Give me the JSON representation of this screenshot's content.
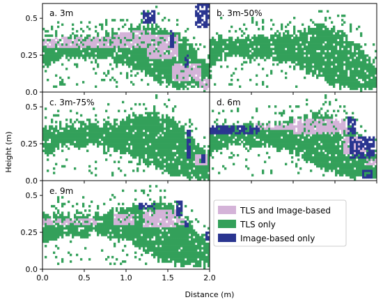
{
  "chart_data": {
    "type": "heatmap",
    "xlabel": "Distance (m)",
    "ylabel": "Height (m)",
    "xlim": [
      0,
      2.0
    ],
    "ylim": [
      0,
      0.6
    ],
    "xticks": [
      0.0,
      0.5,
      1.0,
      1.5,
      2.0
    ],
    "xtick_labels": [
      "0.0",
      "0.5",
      "1.0",
      "1.5",
      "2.0"
    ],
    "yticks": [
      0.0,
      0.25,
      0.5
    ],
    "ytick_labels": [
      "0.0",
      "0.25",
      "0.5"
    ],
    "grid": false,
    "legend": {
      "placement": "lower-right",
      "entries": [
        {
          "label": "TLS and Image-based",
          "color": "#d4b3d8"
        },
        {
          "label": "TLS only",
          "color": "#33a05a"
        },
        {
          "label": "Image-based only",
          "color": "#2a3590"
        }
      ]
    },
    "panels": [
      {
        "label": "a. 3m",
        "image_based": [
          [
            1.2,
            0.47,
            0.16,
            0.09
          ],
          [
            1.82,
            0.44,
            0.17,
            0.16
          ],
          [
            1.52,
            0.3,
            0.06,
            0.12
          ],
          [
            1.7,
            0.16,
            0.05,
            0.1
          ]
        ],
        "shared": [
          [
            0.0,
            0.3,
            1.05,
            0.07
          ],
          [
            0.85,
            0.3,
            0.45,
            0.12
          ],
          [
            1.25,
            0.22,
            0.38,
            0.17
          ],
          [
            1.55,
            0.08,
            0.35,
            0.12
          ],
          [
            1.88,
            0.02,
            0.12,
            0.07
          ]
        ]
      },
      {
        "label": "b. 3m-50%",
        "image_based": [],
        "shared": []
      },
      {
        "label": "c. 3m-75%",
        "image_based": [
          [
            1.72,
            0.15,
            0.06,
            0.2
          ],
          [
            1.9,
            0.12,
            0.06,
            0.06
          ]
        ],
        "shared": [
          [
            1.82,
            0.1,
            0.16,
            0.08
          ]
        ]
      },
      {
        "label": "d. 6m",
        "image_based": [
          [
            0.0,
            0.32,
            0.6,
            0.05
          ],
          [
            1.66,
            0.32,
            0.1,
            0.11
          ],
          [
            1.68,
            0.15,
            0.3,
            0.15
          ],
          [
            1.82,
            0.02,
            0.12,
            0.06
          ]
        ],
        "shared": [
          [
            0.55,
            0.34,
            0.5,
            0.05
          ],
          [
            1.0,
            0.32,
            0.68,
            0.1
          ],
          [
            1.6,
            0.18,
            0.28,
            0.12
          ],
          [
            1.88,
            0.1,
            0.12,
            0.05
          ]
        ]
      },
      {
        "label": "e. 9m",
        "image_based": [
          [
            1.15,
            0.4,
            0.2,
            0.05
          ],
          [
            1.6,
            0.36,
            0.08,
            0.1
          ],
          [
            1.7,
            0.28,
            0.06,
            0.05
          ],
          [
            1.95,
            0.2,
            0.05,
            0.05
          ]
        ],
        "shared": [
          [
            0.0,
            0.3,
            0.65,
            0.05
          ],
          [
            0.85,
            0.3,
            0.25,
            0.07
          ],
          [
            1.2,
            0.28,
            0.42,
            0.12
          ],
          [
            1.6,
            0.3,
            0.15,
            0.04
          ]
        ]
      }
    ],
    "base_canopy_profile": {
      "x": [
        0.0,
        0.1,
        0.2,
        0.3,
        0.4,
        0.5,
        0.6,
        0.7,
        0.8,
        0.9,
        1.0,
        1.1,
        1.2,
        1.3,
        1.4,
        1.5,
        1.6,
        1.7,
        1.8,
        1.9,
        2.0
      ],
      "top": [
        0.35,
        0.37,
        0.38,
        0.38,
        0.37,
        0.38,
        0.37,
        0.38,
        0.39,
        0.4,
        0.41,
        0.43,
        0.44,
        0.45,
        0.45,
        0.43,
        0.41,
        0.35,
        0.3,
        0.22,
        0.18
      ],
      "bottom": [
        0.18,
        0.19,
        0.23,
        0.24,
        0.23,
        0.22,
        0.24,
        0.24,
        0.22,
        0.2,
        0.19,
        0.16,
        0.13,
        0.1,
        0.07,
        0.05,
        0.03,
        0.02,
        0.02,
        0.02,
        0.02
      ]
    }
  }
}
